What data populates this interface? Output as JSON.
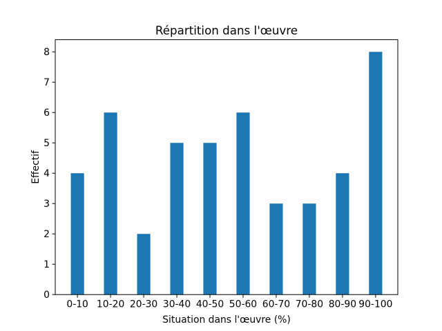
{
  "figure": {
    "background": "#ffffff"
  },
  "chart_data": {
    "type": "bar",
    "title": "Répartition dans l'œuvre",
    "xlabel": "Situation dans l'œuvre (%)",
    "ylabel": "Effectif",
    "categories": [
      "0-10",
      "10-20",
      "20-30",
      "30-40",
      "40-50",
      "50-60",
      "60-70",
      "70-80",
      "80-90",
      "90-100"
    ],
    "values": [
      4,
      6,
      2,
      5,
      5,
      6,
      3,
      3,
      4,
      8
    ],
    "yticks": [
      0,
      1,
      2,
      3,
      4,
      5,
      6,
      7,
      8
    ],
    "ylim": [
      0,
      8.4
    ],
    "xlim": [
      -0.67,
      9.67
    ],
    "bar_width": 0.4,
    "bar_color": "#1f77b4",
    "axis_color": "#000000",
    "text_color": "#000000",
    "grid": false,
    "legend_position": "none"
  }
}
